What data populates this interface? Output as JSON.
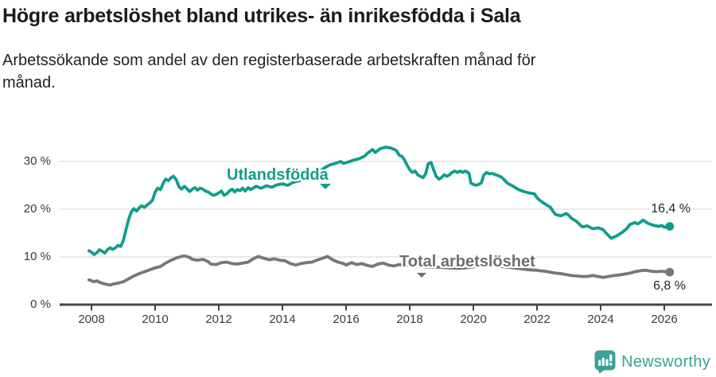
{
  "header": {
    "title": "Högre arbetslöshet bland utrikes- än inrikesfödda i Sala",
    "subtitle": "Arbetssökande som andel av den registerbaserade arbetskraften månad för\nmånad."
  },
  "footer": {
    "brand": "Newsworthy",
    "brand_icon": "bar-chart-speech-bubble"
  },
  "colors": {
    "teal_line": "#149c8b",
    "gray_line": "#77777b",
    "gray_label": "#6e6e72",
    "brand_teal": "#3aa199",
    "axis": "#454545",
    "gridline": "#e2e2e2",
    "text_dark": "#1b1b1b",
    "tick_label": "#3b3b3b"
  },
  "chart_data": {
    "type": "line",
    "title": "Högre arbetslöshet bland utrikes- än inrikesfödda i Sala",
    "subtitle": "Arbetssökande som andel av den registerbaserade arbetskraften månad för månad.",
    "unit": "%",
    "grid": true,
    "legend_position": "inline-labels",
    "xlim": [
      2007,
      2027.5
    ],
    "ylim": [
      0,
      35
    ],
    "x_ticks": [
      "2008",
      "2010",
      "2012",
      "2014",
      "2016",
      "2018",
      "2020",
      "2022",
      "2024",
      "2026"
    ],
    "x_tick_values": [
      2008,
      2010,
      2012,
      2014,
      2016,
      2018,
      2020,
      2022,
      2024,
      2026
    ],
    "y_ticks": [
      "0 %",
      "10 %",
      "20 %",
      "30 %"
    ],
    "y_tick_values": [
      0,
      10,
      20,
      30
    ],
    "series": [
      {
        "name": "Utlandsfödda",
        "color": "#149c8b",
        "end_label": "16,4 %",
        "end_value": 16.4,
        "points": [
          [
            2007.92,
            11.3
          ],
          [
            2008.0,
            11.0
          ],
          [
            2008.08,
            10.5
          ],
          [
            2008.17,
            10.9
          ],
          [
            2008.25,
            11.5
          ],
          [
            2008.33,
            11.2
          ],
          [
            2008.42,
            10.8
          ],
          [
            2008.5,
            11.5
          ],
          [
            2008.58,
            11.9
          ],
          [
            2008.67,
            11.6
          ],
          [
            2008.75,
            11.9
          ],
          [
            2008.83,
            12.4
          ],
          [
            2008.92,
            12.2
          ],
          [
            2009.0,
            13.4
          ],
          [
            2009.08,
            15.6
          ],
          [
            2009.17,
            17.9
          ],
          [
            2009.25,
            19.4
          ],
          [
            2009.33,
            20.1
          ],
          [
            2009.42,
            19.6
          ],
          [
            2009.5,
            20.3
          ],
          [
            2009.58,
            20.7
          ],
          [
            2009.67,
            20.4
          ],
          [
            2009.75,
            20.9
          ],
          [
            2009.83,
            21.3
          ],
          [
            2009.92,
            21.9
          ],
          [
            2010.0,
            23.6
          ],
          [
            2010.08,
            24.4
          ],
          [
            2010.17,
            24.1
          ],
          [
            2010.25,
            25.4
          ],
          [
            2010.33,
            26.3
          ],
          [
            2010.42,
            26.0
          ],
          [
            2010.5,
            26.6
          ],
          [
            2010.58,
            26.9
          ],
          [
            2010.67,
            26.1
          ],
          [
            2010.75,
            24.7
          ],
          [
            2010.83,
            24.2
          ],
          [
            2010.92,
            24.8
          ],
          [
            2011.0,
            24.3
          ],
          [
            2011.08,
            23.7
          ],
          [
            2011.17,
            24.2
          ],
          [
            2011.25,
            24.5
          ],
          [
            2011.33,
            24.0
          ],
          [
            2011.42,
            24.4
          ],
          [
            2011.5,
            24.2
          ],
          [
            2011.58,
            23.8
          ],
          [
            2011.67,
            23.6
          ],
          [
            2011.75,
            23.2
          ],
          [
            2011.83,
            22.9
          ],
          [
            2011.92,
            23.1
          ],
          [
            2012.0,
            23.4
          ],
          [
            2012.08,
            23.8
          ],
          [
            2012.17,
            22.9
          ],
          [
            2012.25,
            23.2
          ],
          [
            2012.33,
            23.8
          ],
          [
            2012.42,
            24.2
          ],
          [
            2012.5,
            23.6
          ],
          [
            2012.58,
            24.1
          ],
          [
            2012.67,
            23.9
          ],
          [
            2012.75,
            24.4
          ],
          [
            2012.83,
            23.8
          ],
          [
            2012.92,
            24.5
          ],
          [
            2013.0,
            24.1
          ],
          [
            2013.17,
            24.8
          ],
          [
            2013.33,
            24.4
          ],
          [
            2013.5,
            24.9
          ],
          [
            2013.67,
            24.6
          ],
          [
            2013.83,
            25.1
          ],
          [
            2014.0,
            25.3
          ],
          [
            2014.17,
            25.0
          ],
          [
            2014.33,
            25.6
          ],
          [
            2014.5,
            25.9
          ],
          [
            2014.67,
            26.3
          ],
          [
            2014.83,
            26.7
          ],
          [
            2015.0,
            27.3
          ],
          [
            2015.17,
            27.9
          ],
          [
            2015.33,
            28.7
          ],
          [
            2015.5,
            29.3
          ],
          [
            2015.67,
            29.6
          ],
          [
            2015.83,
            30.0
          ],
          [
            2015.92,
            29.6
          ],
          [
            2016.08,
            29.9
          ],
          [
            2016.25,
            30.3
          ],
          [
            2016.42,
            30.6
          ],
          [
            2016.58,
            31.1
          ],
          [
            2016.67,
            31.7
          ],
          [
            2016.83,
            32.5
          ],
          [
            2016.92,
            31.9
          ],
          [
            2017.08,
            32.7
          ],
          [
            2017.25,
            33.0
          ],
          [
            2017.42,
            32.8
          ],
          [
            2017.58,
            32.3
          ],
          [
            2017.67,
            31.3
          ],
          [
            2017.75,
            31.1
          ],
          [
            2017.83,
            30.4
          ],
          [
            2017.92,
            29.2
          ],
          [
            2018.0,
            28.3
          ],
          [
            2018.08,
            27.7
          ],
          [
            2018.17,
            28.0
          ],
          [
            2018.25,
            27.2
          ],
          [
            2018.33,
            26.9
          ],
          [
            2018.42,
            26.6
          ],
          [
            2018.5,
            27.4
          ],
          [
            2018.58,
            29.5
          ],
          [
            2018.67,
            29.8
          ],
          [
            2018.75,
            28.3
          ],
          [
            2018.83,
            26.9
          ],
          [
            2018.92,
            26.3
          ],
          [
            2019.0,
            26.6
          ],
          [
            2019.08,
            27.2
          ],
          [
            2019.17,
            26.9
          ],
          [
            2019.25,
            27.2
          ],
          [
            2019.33,
            27.7
          ],
          [
            2019.42,
            28.0
          ],
          [
            2019.5,
            27.7
          ],
          [
            2019.58,
            28.0
          ],
          [
            2019.67,
            27.7
          ],
          [
            2019.75,
            28.0
          ],
          [
            2019.83,
            27.7
          ],
          [
            2019.87,
            27.4
          ],
          [
            2019.92,
            25.5
          ],
          [
            2020.0,
            25.2
          ],
          [
            2020.08,
            25.0
          ],
          [
            2020.17,
            25.2
          ],
          [
            2020.25,
            25.5
          ],
          [
            2020.33,
            27.2
          ],
          [
            2020.42,
            27.7
          ],
          [
            2020.5,
            27.4
          ],
          [
            2020.58,
            27.5
          ],
          [
            2020.67,
            27.3
          ],
          [
            2020.75,
            27.1
          ],
          [
            2020.83,
            26.9
          ],
          [
            2020.92,
            26.5
          ],
          [
            2021.08,
            25.4
          ],
          [
            2021.25,
            24.8
          ],
          [
            2021.42,
            24.1
          ],
          [
            2021.58,
            23.7
          ],
          [
            2021.75,
            23.4
          ],
          [
            2021.92,
            23.2
          ],
          [
            2022.0,
            22.4
          ],
          [
            2022.08,
            21.9
          ],
          [
            2022.25,
            21.1
          ],
          [
            2022.42,
            20.4
          ],
          [
            2022.5,
            19.6
          ],
          [
            2022.58,
            18.9
          ],
          [
            2022.75,
            18.6
          ],
          [
            2022.92,
            19.1
          ],
          [
            2023.0,
            18.7
          ],
          [
            2023.08,
            18.1
          ],
          [
            2023.25,
            17.4
          ],
          [
            2023.42,
            16.3
          ],
          [
            2023.58,
            16.5
          ],
          [
            2023.75,
            15.9
          ],
          [
            2023.92,
            16.1
          ],
          [
            2024.08,
            15.7
          ],
          [
            2024.17,
            15.0
          ],
          [
            2024.33,
            13.9
          ],
          [
            2024.5,
            14.4
          ],
          [
            2024.67,
            15.1
          ],
          [
            2024.83,
            16.0
          ],
          [
            2024.92,
            16.8
          ],
          [
            2025.08,
            17.2
          ],
          [
            2025.17,
            16.9
          ],
          [
            2025.33,
            17.7
          ],
          [
            2025.5,
            17.0
          ],
          [
            2025.67,
            16.6
          ],
          [
            2025.83,
            16.4
          ],
          [
            2025.92,
            16.6
          ],
          [
            2026.0,
            16.2
          ],
          [
            2026.17,
            16.4
          ]
        ]
      },
      {
        "name": "Total arbetslöshet",
        "color": "#77777b",
        "end_label": "6,8 %",
        "end_value": 6.8,
        "points": [
          [
            2007.92,
            5.2
          ],
          [
            2008.0,
            5.0
          ],
          [
            2008.08,
            4.8
          ],
          [
            2008.17,
            5.0
          ],
          [
            2008.25,
            4.7
          ],
          [
            2008.33,
            4.5
          ],
          [
            2008.5,
            4.2
          ],
          [
            2008.58,
            4.1
          ],
          [
            2008.67,
            4.3
          ],
          [
            2008.83,
            4.5
          ],
          [
            2009.0,
            4.8
          ],
          [
            2009.17,
            5.4
          ],
          [
            2009.33,
            6.0
          ],
          [
            2009.5,
            6.5
          ],
          [
            2009.67,
            6.9
          ],
          [
            2009.83,
            7.3
          ],
          [
            2010.0,
            7.7
          ],
          [
            2010.17,
            8.0
          ],
          [
            2010.33,
            8.7
          ],
          [
            2010.5,
            9.3
          ],
          [
            2010.67,
            9.8
          ],
          [
            2010.83,
            10.1
          ],
          [
            2010.92,
            10.2
          ],
          [
            2011.08,
            9.9
          ],
          [
            2011.17,
            9.5
          ],
          [
            2011.33,
            9.3
          ],
          [
            2011.5,
            9.5
          ],
          [
            2011.67,
            9.0
          ],
          [
            2011.75,
            8.5
          ],
          [
            2011.92,
            8.4
          ],
          [
            2012.08,
            8.8
          ],
          [
            2012.25,
            8.9
          ],
          [
            2012.42,
            8.6
          ],
          [
            2012.58,
            8.5
          ],
          [
            2012.75,
            8.7
          ],
          [
            2012.92,
            8.9
          ],
          [
            2013.08,
            9.6
          ],
          [
            2013.25,
            10.1
          ],
          [
            2013.42,
            9.7
          ],
          [
            2013.58,
            9.4
          ],
          [
            2013.75,
            9.6
          ],
          [
            2013.92,
            9.3
          ],
          [
            2014.08,
            9.2
          ],
          [
            2014.25,
            8.6
          ],
          [
            2014.42,
            8.3
          ],
          [
            2014.58,
            8.6
          ],
          [
            2014.75,
            8.8
          ],
          [
            2014.92,
            8.9
          ],
          [
            2015.08,
            9.3
          ],
          [
            2015.25,
            9.7
          ],
          [
            2015.42,
            10.1
          ],
          [
            2015.58,
            9.4
          ],
          [
            2015.75,
            8.9
          ],
          [
            2015.92,
            8.6
          ],
          [
            2016.0,
            8.3
          ],
          [
            2016.17,
            8.8
          ],
          [
            2016.33,
            8.4
          ],
          [
            2016.5,
            8.6
          ],
          [
            2016.67,
            8.2
          ],
          [
            2016.83,
            8.0
          ],
          [
            2017.0,
            8.5
          ],
          [
            2017.17,
            8.7
          ],
          [
            2017.33,
            8.3
          ],
          [
            2017.5,
            8.1
          ],
          [
            2017.67,
            8.4
          ],
          [
            2017.83,
            8.3
          ],
          [
            2018.0,
            8.2
          ],
          [
            2018.25,
            8.1
          ],
          [
            2018.5,
            7.9
          ],
          [
            2018.75,
            7.9
          ],
          [
            2019.0,
            7.8
          ],
          [
            2019.25,
            7.7
          ],
          [
            2019.5,
            7.6
          ],
          [
            2019.75,
            7.7
          ],
          [
            2020.0,
            7.9
          ],
          [
            2020.25,
            8.3
          ],
          [
            2020.5,
            8.4
          ],
          [
            2020.75,
            8.1
          ],
          [
            2021.0,
            7.9
          ],
          [
            2021.25,
            7.7
          ],
          [
            2021.5,
            7.5
          ],
          [
            2021.75,
            7.3
          ],
          [
            2022.0,
            7.2
          ],
          [
            2022.08,
            7.1
          ],
          [
            2022.25,
            7.0
          ],
          [
            2022.42,
            6.8
          ],
          [
            2022.58,
            6.6
          ],
          [
            2022.75,
            6.5
          ],
          [
            2022.92,
            6.3
          ],
          [
            2023.08,
            6.1
          ],
          [
            2023.25,
            6.0
          ],
          [
            2023.42,
            5.9
          ],
          [
            2023.58,
            5.9
          ],
          [
            2023.75,
            6.1
          ],
          [
            2023.92,
            5.9
          ],
          [
            2024.08,
            5.7
          ],
          [
            2024.25,
            5.9
          ],
          [
            2024.42,
            6.1
          ],
          [
            2024.58,
            6.2
          ],
          [
            2024.75,
            6.4
          ],
          [
            2024.92,
            6.6
          ],
          [
            2025.08,
            6.9
          ],
          [
            2025.25,
            7.1
          ],
          [
            2025.42,
            7.2
          ],
          [
            2025.58,
            7.0
          ],
          [
            2025.75,
            6.9
          ],
          [
            2025.92,
            7.0
          ],
          [
            2026.17,
            6.8
          ]
        ]
      }
    ]
  }
}
